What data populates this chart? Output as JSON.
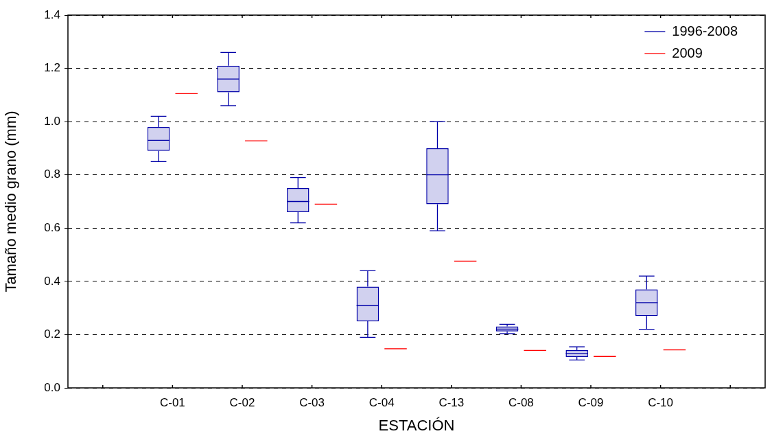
{
  "chart_data": {
    "type": "box",
    "xlabel": "ESTACIÓN",
    "ylabel": "Tamaño medio grano (mm)",
    "categories": [
      null,
      "C-01",
      "C-02",
      "C-03",
      "C-04",
      "C-13",
      "C-08",
      "C-09",
      "C-10",
      null
    ],
    "series": [
      {
        "name": "1996-2008",
        "color": "#0000a8",
        "boxes": [
          null,
          {
            "low": 0.85,
            "q1": 0.89,
            "median": 0.93,
            "q3": 0.98,
            "high": 1.02
          },
          {
            "low": 1.06,
            "q1": 1.11,
            "median": 1.16,
            "q3": 1.21,
            "high": 1.26
          },
          {
            "low": 0.62,
            "q1": 0.66,
            "median": 0.7,
            "q3": 0.75,
            "high": 0.79
          },
          {
            "low": 0.19,
            "q1": 0.25,
            "median": 0.31,
            "q3": 0.38,
            "high": 0.44
          },
          {
            "low": 0.59,
            "q1": 0.69,
            "median": 0.8,
            "q3": 0.9,
            "high": 1.0
          },
          {
            "low": 0.204,
            "q1": 0.212,
            "median": 0.221,
            "q3": 0.231,
            "high": 0.239
          },
          {
            "low": 0.105,
            "q1": 0.116,
            "median": 0.129,
            "q3": 0.142,
            "high": 0.154
          },
          {
            "low": 0.22,
            "q1": 0.27,
            "median": 0.32,
            "q3": 0.37,
            "high": 0.42
          },
          null
        ]
      },
      {
        "name": "2009",
        "color": "#ff0000",
        "boxes": [
          null,
          {
            "low": 1.105,
            "q1": 1.105,
            "median": 1.105,
            "q3": 1.105,
            "high": 1.105
          },
          {
            "low": 0.928,
            "q1": 0.928,
            "median": 0.928,
            "q3": 0.928,
            "high": 0.928
          },
          {
            "low": 0.69,
            "q1": 0.69,
            "median": 0.69,
            "q3": 0.69,
            "high": 0.69
          },
          {
            "low": 0.147,
            "q1": 0.147,
            "median": 0.147,
            "q3": 0.147,
            "high": 0.147
          },
          {
            "low": 0.476,
            "q1": 0.476,
            "median": 0.476,
            "q3": 0.476,
            "high": 0.476
          },
          {
            "low": 0.141,
            "q1": 0.141,
            "median": 0.141,
            "q3": 0.141,
            "high": 0.141
          },
          {
            "low": 0.118,
            "q1": 0.118,
            "median": 0.118,
            "q3": 0.118,
            "high": 0.118
          },
          {
            "low": 0.143,
            "q1": 0.143,
            "median": 0.143,
            "q3": 0.143,
            "high": 0.143
          },
          null
        ]
      }
    ],
    "ylim": [
      0,
      1.4
    ],
    "yticks": [
      {
        "value": 0,
        "label": "0.0"
      },
      {
        "value": 0.2,
        "label": "0.2"
      },
      {
        "value": 0.4,
        "label": "0.4"
      },
      {
        "value": 0.6,
        "label": "0.6"
      },
      {
        "value": 0.8,
        "label": "0.8"
      },
      {
        "value": 1.0,
        "label": "1.0"
      },
      {
        "value": 1.2,
        "label": "1.2"
      },
      {
        "value": 1.4,
        "label": "1.4"
      }
    ],
    "grid": "y",
    "legend": "top right"
  }
}
